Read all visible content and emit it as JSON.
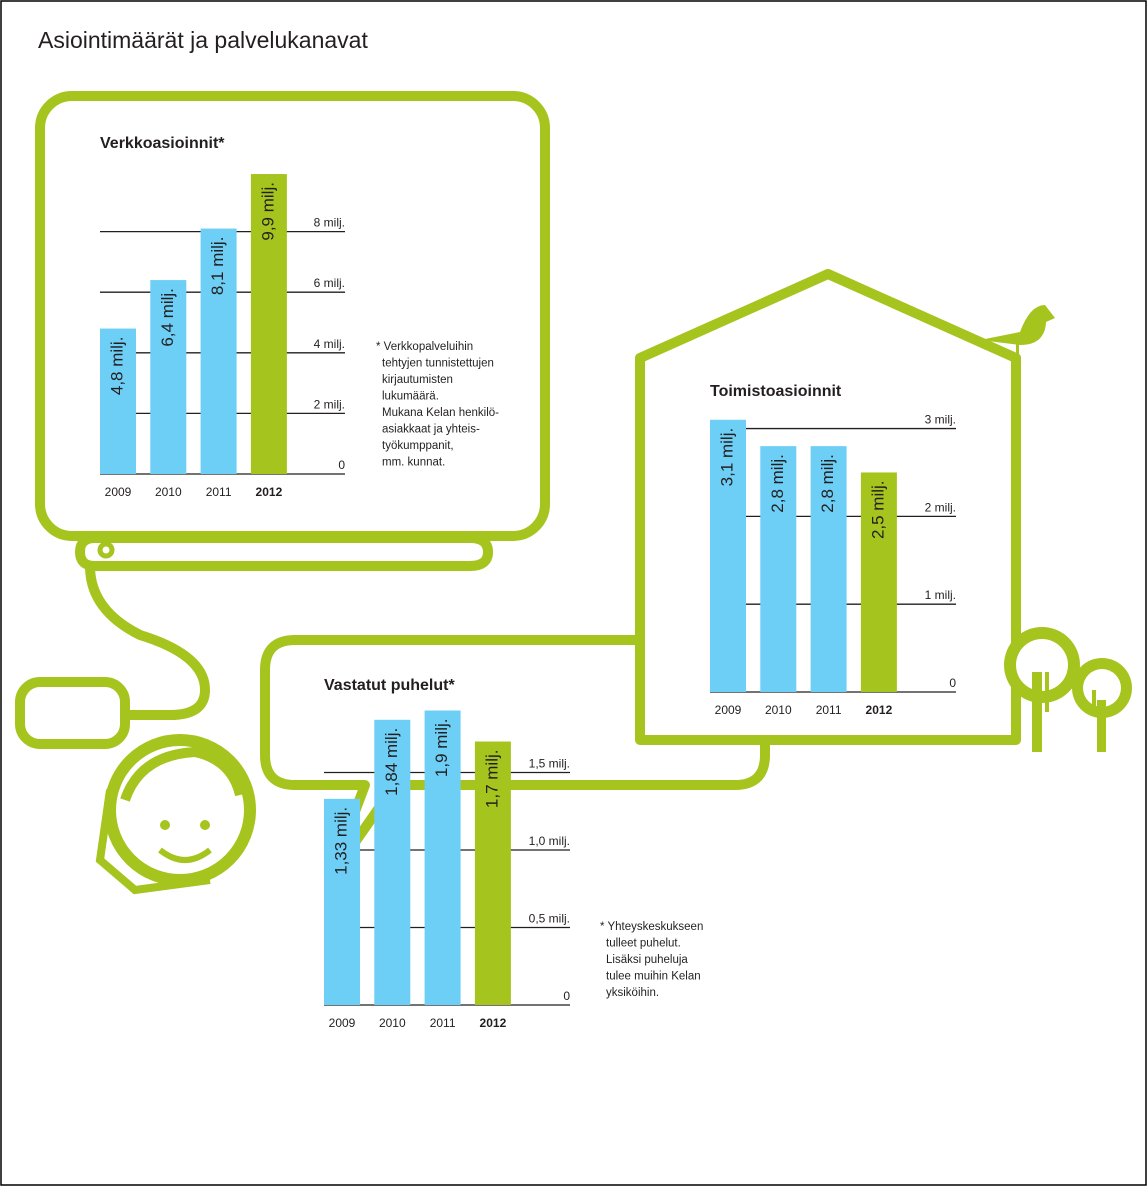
{
  "title": "Asiointimäärät ja palvelukanavat",
  "chart_data": [
    {
      "type": "bar",
      "title": "Verkkoasioinnit*",
      "categories": [
        "2009",
        "2010",
        "2011",
        "2012"
      ],
      "values": [
        4.8,
        6.4,
        8.1,
        9.9
      ],
      "value_labels": [
        "4,8 milj.",
        "6,4 milj.",
        "8,1 milj.",
        "9,9 milj."
      ],
      "colors": [
        "#6dcff6",
        "#6dcff6",
        "#6dcff6",
        "#a6c41e"
      ],
      "ylim": [
        0,
        10
      ],
      "yticks": [
        0,
        {
          "value": 2,
          "label": "2 milj."
        },
        {
          "value": 4,
          "label": "4 milj."
        },
        {
          "value": 6,
          "label": "6 milj."
        },
        {
          "value": 8,
          "label": "8 milj."
        }
      ],
      "grid": true,
      "note": [
        "* Verkkopalveluihin",
        "tehtyjen tunnistettujen",
        "kirjautumisten",
        "lukumäärä.",
        "Mukana Kelan henkilö-",
        "asiakkaat ja yhteis-",
        "työkumppanit,",
        "mm. kunnat."
      ]
    },
    {
      "type": "bar",
      "title": "Toimistoasioinnit",
      "categories": [
        "2009",
        "2010",
        "2011",
        "2012"
      ],
      "values": [
        3.1,
        2.8,
        2.8,
        2.5
      ],
      "value_labels": [
        "3,1 milj.",
        "2,8 milj.",
        "2,8 milj.",
        "2,5 milj."
      ],
      "colors": [
        "#6dcff6",
        "#6dcff6",
        "#6dcff6",
        "#a6c41e"
      ],
      "ylim": [
        0,
        3.2
      ],
      "yticks": [
        0,
        {
          "value": 1,
          "label": "1 milj."
        },
        {
          "value": 2,
          "label": "2 milj."
        },
        {
          "value": 3,
          "label": "3 milj."
        }
      ],
      "grid": true
    },
    {
      "type": "bar",
      "title": "Vastatut puhelut*",
      "categories": [
        "2009",
        "2010",
        "2011",
        "2012"
      ],
      "values": [
        1.33,
        1.84,
        1.9,
        1.7
      ],
      "value_labels": [
        "1,33 milj.",
        "1,84 milj.",
        "1,9 milj.",
        "1,7 milj."
      ],
      "colors": [
        "#6dcff6",
        "#6dcff6",
        "#6dcff6",
        "#a6c41e"
      ],
      "ylim": [
        0,
        2
      ],
      "yticks": [
        0,
        {
          "value": 0.5,
          "label": "0,5 milj."
        },
        {
          "value": 1,
          "label": "1,0 milj."
        },
        {
          "value": 1.5,
          "label": "1,5 milj."
        }
      ],
      "grid": true,
      "note": [
        "* Yhteyskeskukseen",
        "tulleet puhelut.",
        "Lisäksi puheluja",
        "tulee muihin Kelan",
        "yksiköihin."
      ]
    }
  ]
}
